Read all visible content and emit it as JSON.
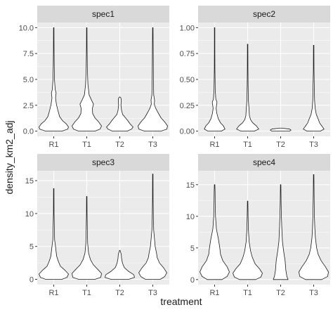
{
  "chart_data": {
    "type": "violin",
    "xlabel": "treatment",
    "ylabel": "density_km2_adj",
    "categories": [
      "R1",
      "T1",
      "T2",
      "T3"
    ],
    "colors": {
      "panel": "#ebebeb",
      "strip": "#d9d9d9",
      "grid": "#ffffff",
      "outline": "#1a1a1a"
    },
    "grid": true,
    "panels": [
      {
        "title": "spec1",
        "ylim": [
          -0.5,
          10.5
        ],
        "yticks": [
          0,
          2.5,
          5,
          7.5,
          10
        ],
        "ytick_labels": [
          "0.0",
          "2.5",
          "5.0",
          "7.5",
          "10.0"
        ],
        "violins": [
          {
            "category": "R1",
            "profile": [
              [
                0,
                0.55
              ],
              [
                0.2,
                0.95
              ],
              [
                0.4,
                1.0
              ],
              [
                0.7,
                0.85
              ],
              [
                1.0,
                0.6
              ],
              [
                1.4,
                0.4
              ],
              [
                2.0,
                0.28
              ],
              [
                2.6,
                0.18
              ],
              [
                3.2,
                0.12
              ],
              [
                3.7,
                0.16
              ],
              [
                4.0,
                0.1
              ],
              [
                5.0,
                0.05
              ],
              [
                6.5,
                0.03
              ],
              [
                8.0,
                0.02
              ],
              [
                10.0,
                0.01
              ]
            ]
          },
          {
            "category": "T1",
            "profile": [
              [
                0,
                0.55
              ],
              [
                0.2,
                0.9
              ],
              [
                0.5,
                1.0
              ],
              [
                0.9,
                0.8
              ],
              [
                1.3,
                0.55
              ],
              [
                1.7,
                0.4
              ],
              [
                2.2,
                0.38
              ],
              [
                2.6,
                0.46
              ],
              [
                3.0,
                0.32
              ],
              [
                3.5,
                0.16
              ],
              [
                4.5,
                0.08
              ],
              [
                6.0,
                0.04
              ],
              [
                8.0,
                0.02
              ],
              [
                10.0,
                0.01
              ]
            ]
          },
          {
            "category": "T2",
            "profile": [
              [
                0,
                0.5
              ],
              [
                0.2,
                0.8
              ],
              [
                0.4,
                0.9
              ],
              [
                0.7,
                0.7
              ],
              [
                1.0,
                0.55
              ],
              [
                1.3,
                0.38
              ],
              [
                1.6,
                0.2
              ],
              [
                2.0,
                0.12
              ],
              [
                2.5,
                0.08
              ],
              [
                3.0,
                0.1
              ],
              [
                3.2,
                0.08
              ],
              [
                3.3,
                0.01
              ]
            ]
          },
          {
            "category": "T3",
            "profile": [
              [
                0,
                0.55
              ],
              [
                0.2,
                0.95
              ],
              [
                0.5,
                1.0
              ],
              [
                0.9,
                0.8
              ],
              [
                1.3,
                0.55
              ],
              [
                1.8,
                0.35
              ],
              [
                2.2,
                0.2
              ],
              [
                2.6,
                0.1
              ],
              [
                3.0,
                0.12
              ],
              [
                3.5,
                0.06
              ],
              [
                5.0,
                0.04
              ],
              [
                7.0,
                0.03
              ],
              [
                10.0,
                0.01
              ]
            ]
          }
        ]
      },
      {
        "title": "spec2",
        "ylim": [
          -0.05,
          1.05
        ],
        "yticks": [
          0,
          0.25,
          0.5,
          0.75,
          1.0
        ],
        "ytick_labels": [
          "0.00",
          "0.25",
          "0.50",
          "0.75",
          "1.00"
        ],
        "violins": [
          {
            "category": "R1",
            "profile": [
              [
                0,
                0.45
              ],
              [
                0.02,
                0.7
              ],
              [
                0.05,
                0.6
              ],
              [
                0.08,
                0.4
              ],
              [
                0.12,
                0.25
              ],
              [
                0.17,
                0.15
              ],
              [
                0.22,
                0.1
              ],
              [
                0.28,
                0.16
              ],
              [
                0.31,
                0.08
              ],
              [
                0.4,
                0.04
              ],
              [
                0.6,
                0.02
              ],
              [
                0.8,
                0.015
              ],
              [
                1.0,
                0.01
              ]
            ]
          },
          {
            "category": "T1",
            "profile": [
              [
                0,
                0.45
              ],
              [
                0.02,
                0.75
              ],
              [
                0.05,
                0.6
              ],
              [
                0.08,
                0.35
              ],
              [
                0.11,
                0.2
              ],
              [
                0.15,
                0.12
              ],
              [
                0.2,
                0.1
              ],
              [
                0.3,
                0.05
              ],
              [
                0.45,
                0.03
              ],
              [
                0.6,
                0.02
              ],
              [
                0.84,
                0.01
              ]
            ]
          },
          {
            "category": "T2",
            "profile": [
              [
                0,
                0.6
              ],
              [
                0.01,
                0.7
              ],
              [
                0.02,
                0.6
              ],
              [
                0.03,
                0.01
              ]
            ]
          },
          {
            "category": "T3",
            "profile": [
              [
                0,
                0.45
              ],
              [
                0.02,
                0.7
              ],
              [
                0.05,
                0.55
              ],
              [
                0.08,
                0.4
              ],
              [
                0.12,
                0.3
              ],
              [
                0.16,
                0.18
              ],
              [
                0.22,
                0.1
              ],
              [
                0.3,
                0.06
              ],
              [
                0.45,
                0.04
              ],
              [
                0.6,
                0.02
              ],
              [
                0.83,
                0.01
              ]
            ]
          }
        ]
      },
      {
        "title": "spec3",
        "ylim": [
          -0.8,
          16.5
        ],
        "yticks": [
          0,
          5,
          10,
          15
        ],
        "ytick_labels": [
          "0",
          "5",
          "10",
          "15"
        ],
        "violins": [
          {
            "category": "R1",
            "profile": [
              [
                0,
                0.55
              ],
              [
                0.3,
                0.9
              ],
              [
                0.8,
                1.0
              ],
              [
                1.4,
                0.75
              ],
              [
                2.0,
                0.45
              ],
              [
                2.8,
                0.3
              ],
              [
                3.5,
                0.2
              ],
              [
                4.2,
                0.16
              ],
              [
                5.0,
                0.12
              ],
              [
                6.0,
                0.06
              ],
              [
                8.0,
                0.04
              ],
              [
                10.0,
                0.02
              ],
              [
                13.8,
                0.01
              ]
            ]
          },
          {
            "category": "T1",
            "profile": [
              [
                0,
                0.55
              ],
              [
                0.3,
                0.95
              ],
              [
                0.9,
                1.0
              ],
              [
                1.5,
                0.75
              ],
              [
                2.2,
                0.45
              ],
              [
                3.0,
                0.25
              ],
              [
                4.0,
                0.12
              ],
              [
                5.5,
                0.06
              ],
              [
                7.5,
                0.04
              ],
              [
                10.0,
                0.02
              ],
              [
                12.6,
                0.01
              ]
            ]
          },
          {
            "category": "T2",
            "profile": [
              [
                0,
                0.6
              ],
              [
                0.3,
                1.0
              ],
              [
                0.7,
                0.95
              ],
              [
                1.2,
                0.6
              ],
              [
                1.8,
                0.3
              ],
              [
                2.5,
                0.18
              ],
              [
                3.2,
                0.12
              ],
              [
                3.8,
                0.1
              ],
              [
                4.4,
                0.01
              ]
            ]
          },
          {
            "category": "T3",
            "profile": [
              [
                0,
                0.5
              ],
              [
                0.4,
                0.8
              ],
              [
                1.0,
                0.95
              ],
              [
                1.7,
                0.75
              ],
              [
                2.5,
                0.45
              ],
              [
                3.3,
                0.3
              ],
              [
                4.0,
                0.25
              ],
              [
                5.0,
                0.16
              ],
              [
                6.5,
                0.1
              ],
              [
                7.5,
                0.06
              ],
              [
                9.0,
                0.04
              ],
              [
                12.0,
                0.02
              ],
              [
                16.0,
                0.01
              ]
            ]
          }
        ]
      },
      {
        "title": "spec4",
        "ylim": [
          -0.8,
          17.2
        ],
        "yticks": [
          0,
          5,
          10,
          15
        ],
        "ytick_labels": [
          "0",
          "5",
          "10",
          "15"
        ],
        "violins": [
          {
            "category": "R1",
            "profile": [
              [
                0,
                0.5
              ],
              [
                0.5,
                0.85
              ],
              [
                1.2,
                1.0
              ],
              [
                2.0,
                0.85
              ],
              [
                3.0,
                0.55
              ],
              [
                4.0,
                0.4
              ],
              [
                5.0,
                0.35
              ],
              [
                6.5,
                0.25
              ],
              [
                8.0,
                0.12
              ],
              [
                10.0,
                0.06
              ],
              [
                12.0,
                0.04
              ],
              [
                14.0,
                0.03
              ],
              [
                15.0,
                0.01
              ]
            ]
          },
          {
            "category": "T1",
            "profile": [
              [
                0,
                0.55
              ],
              [
                0.4,
                0.9
              ],
              [
                1.0,
                1.0
              ],
              [
                1.7,
                0.8
              ],
              [
                2.5,
                0.5
              ],
              [
                3.5,
                0.32
              ],
              [
                4.5,
                0.2
              ],
              [
                6.0,
                0.1
              ],
              [
                8.0,
                0.05
              ],
              [
                10.0,
                0.03
              ],
              [
                12.4,
                0.01
              ]
            ]
          },
          {
            "category": "T2",
            "profile": [
              [
                0,
                0.5
              ],
              [
                0.5,
                0.42
              ],
              [
                1.5,
                0.35
              ],
              [
                3.0,
                0.3
              ],
              [
                4.5,
                0.2
              ],
              [
                6.0,
                0.12
              ],
              [
                8.0,
                0.08
              ],
              [
                10.0,
                0.05
              ],
              [
                12.0,
                0.03
              ],
              [
                15.0,
                0.01
              ]
            ]
          },
          {
            "category": "T3",
            "profile": [
              [
                0,
                0.55
              ],
              [
                0.5,
                0.95
              ],
              [
                1.2,
                1.0
              ],
              [
                2.0,
                0.8
              ],
              [
                3.0,
                0.5
              ],
              [
                4.0,
                0.3
              ],
              [
                5.0,
                0.2
              ],
              [
                6.5,
                0.12
              ],
              [
                8.0,
                0.08
              ],
              [
                10.0,
                0.05
              ],
              [
                13.0,
                0.03
              ],
              [
                16.6,
                0.01
              ]
            ]
          }
        ]
      }
    ]
  }
}
